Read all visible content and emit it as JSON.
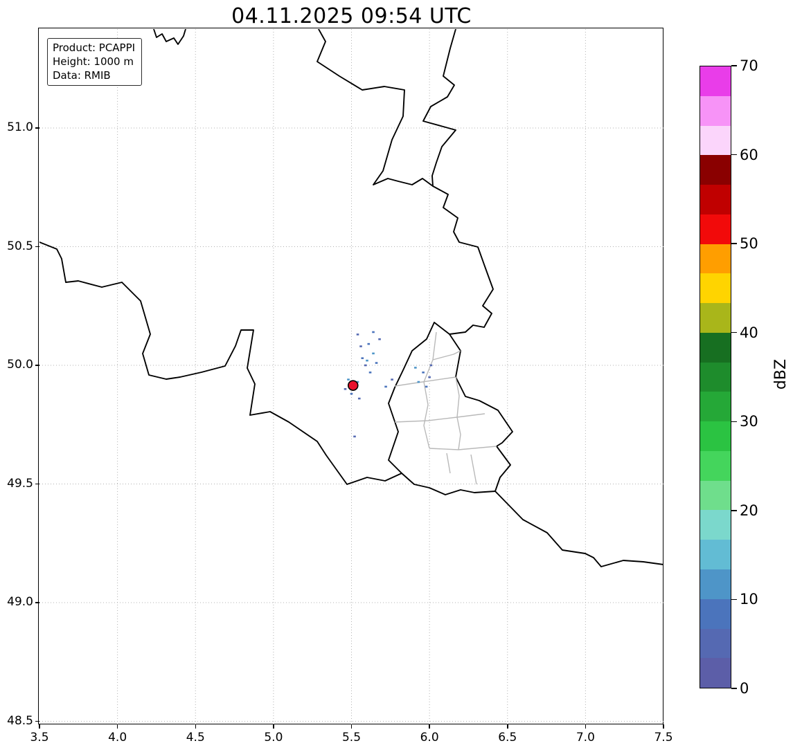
{
  "title": "04.11.2025 09:54 UTC",
  "info_box": {
    "lines": [
      "Product: PCAPPI",
      "Height: 1000 m",
      "Data: RMIB"
    ]
  },
  "axes": {
    "x_tick_labels": [
      "3.5",
      "4.0",
      "4.5",
      "5.0",
      "5.5",
      "6.0",
      "6.5",
      "7.0",
      "7.5"
    ],
    "x_tick_values": [
      3.5,
      4.0,
      4.5,
      5.0,
      5.5,
      6.0,
      6.5,
      7.0,
      7.5
    ],
    "y_tick_labels": [
      "51.0",
      "50.5",
      "50.0",
      "49.5",
      "49.0",
      "48.5"
    ],
    "y_tick_values": [
      51.0,
      50.5,
      50.0,
      49.5,
      49.0,
      48.5
    ],
    "grid": "dotted"
  },
  "colorbar": {
    "label": "dBZ",
    "min": 0,
    "max": 70,
    "ticks": [
      0,
      10,
      20,
      30,
      40,
      50,
      60,
      70
    ],
    "colors_bottom_to_top": [
      "#5C5EA8",
      "#5569B2",
      "#4B74BC",
      "#4E95C8",
      "#62BCD4",
      "#7BD8CC",
      "#6FDE8C",
      "#44D55C",
      "#2BC342",
      "#25A837",
      "#1E8C2C",
      "#176F21",
      "#A9B61A",
      "#FFD400",
      "#FF9E00",
      "#F20A0A",
      "#C00000",
      "#8A0000",
      "#FBD5FB",
      "#F793F7",
      "#E93DE9"
    ]
  },
  "chart_data": {
    "type": "heatmap",
    "title": "04.11.2025 09:54 UTC",
    "product": "PCAPPI",
    "product_height": "1000 m",
    "data_source": "RMIB",
    "unit": "dBZ",
    "value_range": [
      0,
      70
    ],
    "x_range_lon": [
      3.5,
      7.5
    ],
    "y_range_lat": [
      48.5,
      51.42
    ],
    "grid_interval_deg": 0.5,
    "legend_position": "right-colorbar",
    "radar_site": {
      "lon": 5.51,
      "lat": 49.915,
      "marker": "circle",
      "color": "#E8112D",
      "edge": "#000000"
    },
    "echoes": [
      {
        "lon": 5.57,
        "lat": 50.03,
        "dbz": 8
      },
      {
        "lon": 5.6,
        "lat": 50.02,
        "dbz": 10
      },
      {
        "lon": 5.59,
        "lat": 50.0,
        "dbz": 6
      },
      {
        "lon": 5.64,
        "lat": 50.05,
        "dbz": 12
      },
      {
        "lon": 5.66,
        "lat": 50.01,
        "dbz": 8
      },
      {
        "lon": 5.56,
        "lat": 50.08,
        "dbz": 5
      },
      {
        "lon": 5.61,
        "lat": 50.09,
        "dbz": 7
      },
      {
        "lon": 5.68,
        "lat": 50.11,
        "dbz": 6
      },
      {
        "lon": 5.54,
        "lat": 50.13,
        "dbz": 5
      },
      {
        "lon": 5.64,
        "lat": 50.14,
        "dbz": 8
      },
      {
        "lon": 5.48,
        "lat": 49.94,
        "dbz": 10
      },
      {
        "lon": 5.54,
        "lat": 49.93,
        "dbz": 12
      },
      {
        "lon": 5.5,
        "lat": 49.88,
        "dbz": 8
      },
      {
        "lon": 5.55,
        "lat": 49.86,
        "dbz": 6
      },
      {
        "lon": 5.46,
        "lat": 49.9,
        "dbz": 5
      },
      {
        "lon": 5.91,
        "lat": 49.99,
        "dbz": 10
      },
      {
        "lon": 5.96,
        "lat": 49.97,
        "dbz": 8
      },
      {
        "lon": 6.0,
        "lat": 49.95,
        "dbz": 6
      },
      {
        "lon": 5.93,
        "lat": 49.93,
        "dbz": 12
      },
      {
        "lon": 5.98,
        "lat": 49.91,
        "dbz": 7
      },
      {
        "lon": 6.01,
        "lat": 50.0,
        "dbz": 5
      },
      {
        "lon": 5.52,
        "lat": 49.7,
        "dbz": 5
      },
      {
        "lon": 5.72,
        "lat": 49.91,
        "dbz": 8
      },
      {
        "lon": 5.76,
        "lat": 49.94,
        "dbz": 6
      },
      {
        "lon": 5.62,
        "lat": 49.97,
        "dbz": 9
      }
    ]
  }
}
